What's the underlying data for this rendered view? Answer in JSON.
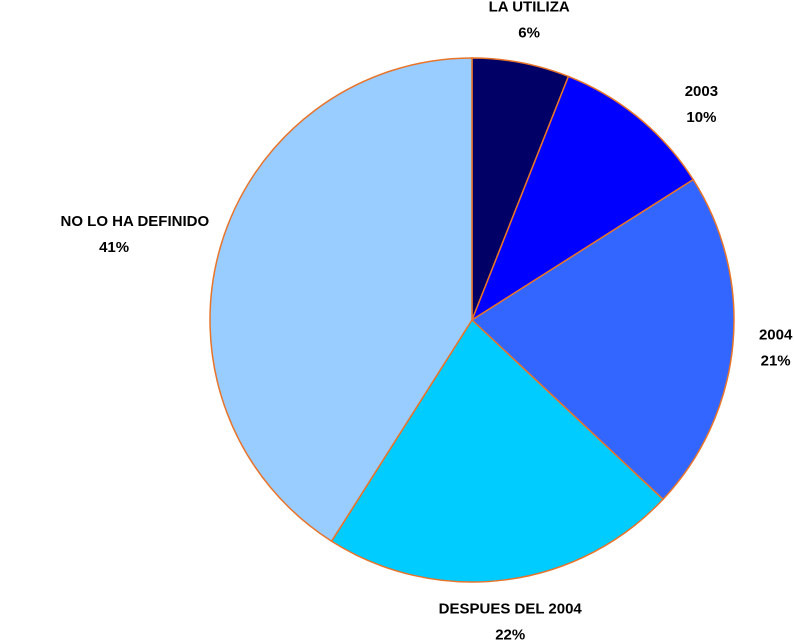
{
  "chart_data": {
    "type": "pie",
    "categories": [
      "LA UTILIZA",
      "2003",
      "2004",
      "DESPUES DEL 2004",
      "NO LO HA DEFINIDO"
    ],
    "values": [
      6,
      10,
      21,
      22,
      41
    ],
    "value_labels": [
      "6%",
      "10%",
      "21%",
      "22%",
      "41%"
    ],
    "colors": [
      "#000066",
      "#0000ff",
      "#3366ff",
      "#00ccff",
      "#99ccff"
    ],
    "edge_color": "#e8742a"
  }
}
